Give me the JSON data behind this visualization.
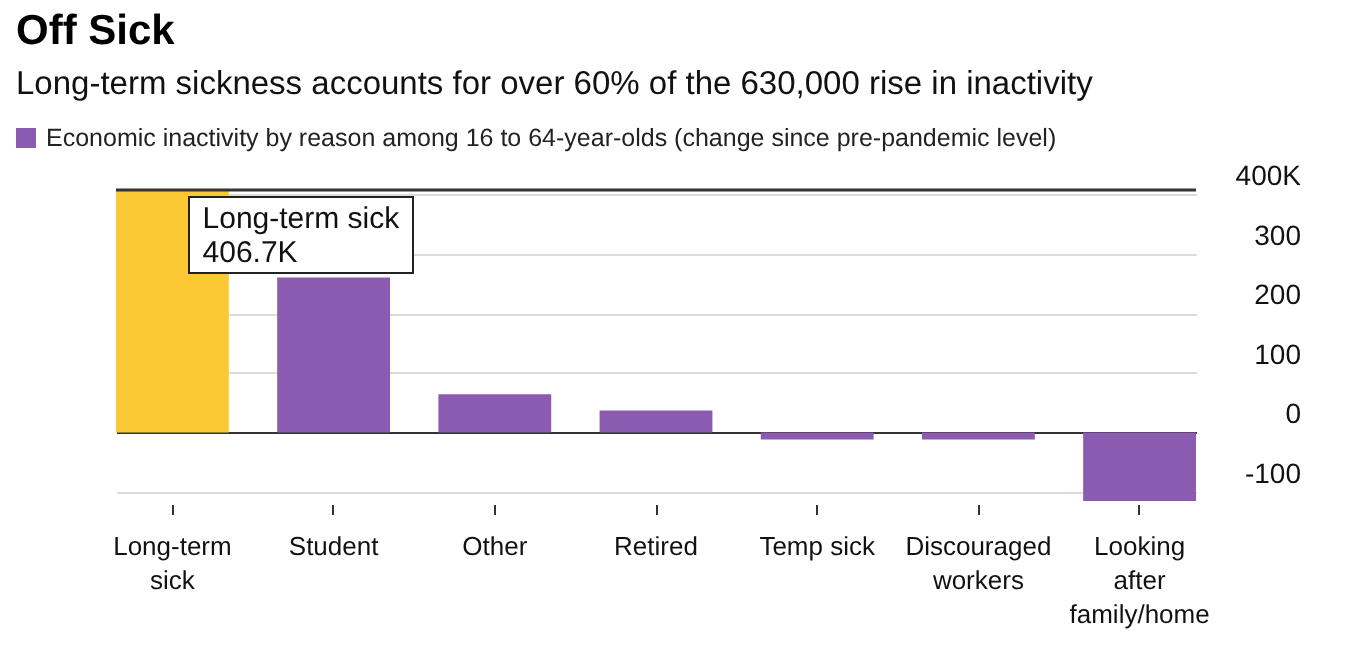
{
  "chart_data": {
    "type": "bar",
    "title": "Off Sick",
    "subtitle": "Long-term sickness accounts for over 60% of the 630,000 rise in inactivity",
    "categories": [
      "Long-term sick",
      "Student",
      "Other",
      "Retired",
      "Temp sick",
      "Discouraged workers",
      "Looking after family/home"
    ],
    "series": [
      {
        "name": "Economic inactivity by reason among 16 to 64-year-olds (change since pre-pandemic level)",
        "color": "#8b5bb1",
        "colors": [
          "#fcc934",
          "#8b5bb1",
          "#8b5bb1",
          "#8b5bb1",
          "#8b5bb1",
          "#8b5bb1",
          "#8b5bb1"
        ],
        "values": [
          406.7,
          260,
          64,
          37,
          -12,
          -12,
          -115
        ]
      }
    ],
    "ylim": [
      -120,
      410
    ],
    "yticks": [
      {
        "value": 400,
        "label": "400K"
      },
      300,
      200,
      100,
      0,
      -100
    ],
    "grid": "y",
    "legend": "top left",
    "ref_lines": [
      {
        "axis": "y",
        "value": 406.7,
        "color": "#333333"
      }
    ],
    "annotations": [
      {
        "text": "Long-term sick 406.7K",
        "x": "Long-term sick",
        "y": 406.7
      }
    ]
  }
}
